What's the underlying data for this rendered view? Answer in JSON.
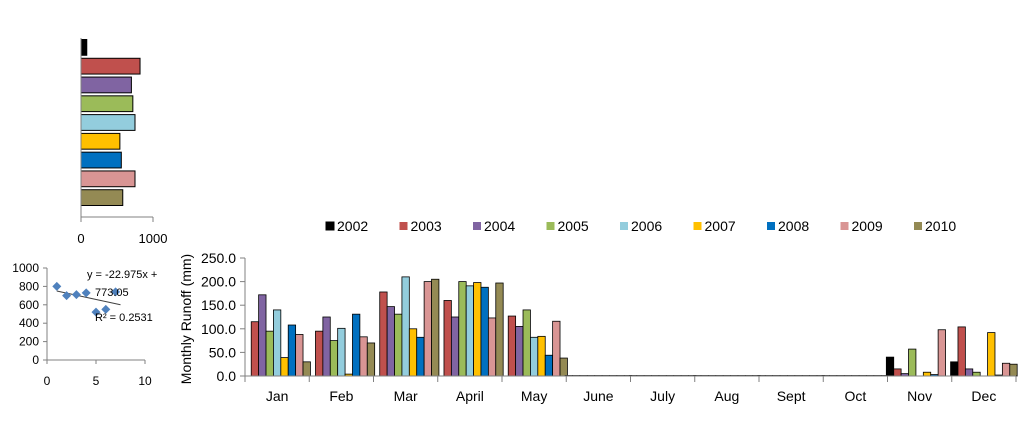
{
  "chart_data": [
    {
      "type": "bar",
      "orientation": "horizontal",
      "categories": [
        "2002",
        "2003",
        "2004",
        "2005",
        "2006",
        "2007",
        "2008",
        "2009",
        "2010"
      ],
      "values": [
        80,
        820,
        700,
        720,
        750,
        540,
        560,
        750,
        580
      ],
      "colors": [
        "#000000",
        "#c0504d",
        "#8064a2",
        "#9bbb59",
        "#93cddd",
        "#ffc000",
        "#0070c0",
        "#d99594",
        "#948a54"
      ],
      "xlim": [
        0,
        1000
      ],
      "xticks": [
        "0",
        "1000"
      ],
      "grid": false,
      "legend": "none"
    },
    {
      "type": "scatter",
      "x": [
        1,
        2,
        3,
        4,
        5,
        6,
        7
      ],
      "y": [
        800,
        700,
        710,
        730,
        520,
        550,
        740
      ],
      "color": "#4f81bd",
      "xlim": [
        0,
        10
      ],
      "ylim": [
        0,
        1000
      ],
      "xticks": [
        "0",
        "5",
        "10"
      ],
      "yticks": [
        "0",
        "200",
        "400",
        "600",
        "800",
        "1000"
      ],
      "trendline": {
        "slope": -22.975,
        "intercept": 773.05
      },
      "annotations": [
        "y = -22.975x +",
        "773.05",
        "R² = 0.2531"
      ],
      "grid": false
    },
    {
      "type": "bar",
      "categories": [
        "Jan",
        "Feb",
        "Mar",
        "April",
        "May",
        "June",
        "July",
        "Aug",
        "Sept",
        "Oct",
        "Nov",
        "Dec"
      ],
      "series": [
        {
          "name": "2002",
          "color": "#000000",
          "values": [
            0,
            0,
            0,
            0,
            0,
            1,
            1,
            1,
            1,
            1,
            40,
            30
          ]
        },
        {
          "name": "2003",
          "color": "#c0504d",
          "values": [
            115,
            95,
            178,
            160,
            127,
            1,
            1,
            1,
            1,
            1,
            15,
            104
          ]
        },
        {
          "name": "2004",
          "color": "#8064a2",
          "values": [
            172,
            125,
            147,
            125,
            105,
            1,
            1,
            1,
            1,
            1,
            5,
            15
          ]
        },
        {
          "name": "2005",
          "color": "#9bbb59",
          "values": [
            95,
            75,
            131,
            200,
            140,
            1,
            1,
            1,
            1,
            1,
            57,
            8
          ]
        },
        {
          "name": "2006",
          "color": "#93cddd",
          "values": [
            140,
            101,
            210,
            191,
            82,
            1,
            1,
            1,
            1,
            1,
            0,
            0
          ]
        },
        {
          "name": "2007",
          "color": "#ffc000",
          "values": [
            39,
            4,
            100,
            198,
            84,
            1,
            1,
            1,
            1,
            1,
            8,
            92
          ]
        },
        {
          "name": "2008",
          "color": "#0070c0",
          "values": [
            108,
            131,
            82,
            188,
            44,
            1,
            1,
            1,
            1,
            1,
            3,
            2
          ]
        },
        {
          "name": "2009",
          "color": "#d99594",
          "values": [
            88,
            83,
            200,
            123,
            116,
            1,
            1,
            1,
            1,
            1,
            98,
            27
          ]
        },
        {
          "name": "2010",
          "color": "#948a54",
          "values": [
            30,
            70,
            205,
            197,
            38,
            1,
            1,
            1,
            1,
            1,
            0,
            25
          ]
        }
      ],
      "ylabel": "Monthly  Runoff (mm)",
      "ylim": [
        0,
        250
      ],
      "yticks": [
        "0.0",
        "50.0",
        "100.0",
        "150.0",
        "200.0",
        "250.0"
      ],
      "grid": false,
      "legend": "top"
    }
  ]
}
